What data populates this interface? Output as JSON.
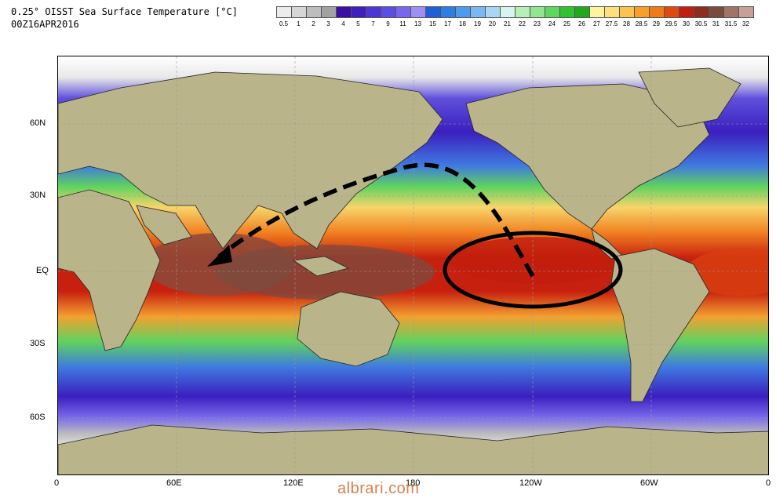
{
  "title": {
    "line1": "0.25° OISST Sea Surface Temperature [°C]",
    "line2": "00Z16APR2016"
  },
  "colorbar": {
    "labels": [
      "0.5",
      "1",
      "2",
      "3",
      "4",
      "5",
      "7",
      "9",
      "11",
      "13",
      "15",
      "17",
      "18",
      "19",
      "20",
      "21",
      "22",
      "23",
      "24",
      "25",
      "26",
      "27",
      "27.5",
      "28",
      "28.5",
      "29",
      "29.5",
      "30",
      "30.5",
      "31",
      "31.5",
      "32"
    ],
    "colors": [
      "#ececec",
      "#d6d6d6",
      "#bdbdbd",
      "#a2a2a2",
      "#3c0ea6",
      "#3f1fbe",
      "#4c36d6",
      "#5b4ee6",
      "#7966ee",
      "#9f8ef5",
      "#1f5fd8",
      "#2e7ee6",
      "#4b9bee",
      "#79b8f1",
      "#a8d6f5",
      "#d6f4f0",
      "#b6f0b6",
      "#8fe68f",
      "#5ed75e",
      "#2fc42f",
      "#1fa91f",
      "#fff3a0",
      "#fde07a",
      "#fbc34f",
      "#f8a026",
      "#f07a18",
      "#e04a10",
      "#c21d0e",
      "#8c2d20",
      "#7b4b40",
      "#a27468",
      "#c8a09a"
    ]
  },
  "map_data": {
    "projection": "equirectangular",
    "lon_range": [
      0,
      360
    ],
    "lat_range": [
      -90,
      90
    ],
    "x_tick_labels": [
      "0",
      "60E",
      "120E",
      "180",
      "120W",
      "60W",
      "0"
    ],
    "y_tick_labels": [
      "60N",
      "30N",
      "EQ",
      "30S",
      "60S"
    ],
    "annotations": [
      {
        "type": "ellipse",
        "name": "eastern-pacific-ellipse",
        "description": "warm eastern equatorial Pacific"
      },
      {
        "type": "dashed-arrow",
        "name": "pacific-to-indian-arrow",
        "from": "eastern equatorial Pacific",
        "to": "Indian Ocean"
      }
    ]
  },
  "watermark": "albrari.com"
}
